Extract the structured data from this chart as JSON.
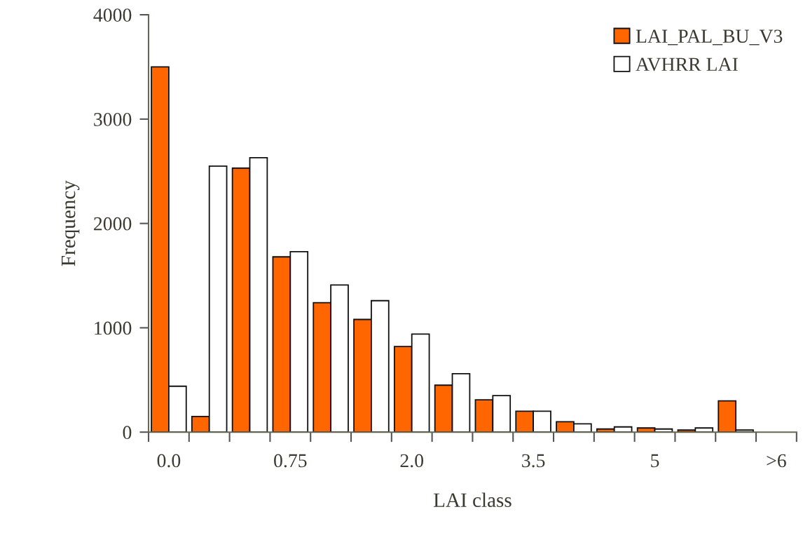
{
  "chart_data": {
    "type": "bar",
    "xlabel": "LAI class",
    "ylabel": "Frequency",
    "categories": [
      "0.0",
      null,
      null,
      "0.75",
      null,
      null,
      "2.0",
      null,
      null,
      "3.5",
      null,
      null,
      "5",
      null,
      null,
      ">6"
    ],
    "series": [
      {
        "name": "LAI_PAL_BU_V3",
        "color": "#ff6600",
        "values": [
          3500,
          150,
          2530,
          1680,
          1240,
          1080,
          820,
          450,
          310,
          200,
          100,
          30,
          40,
          20,
          300,
          null
        ]
      },
      {
        "name": "AVHRR LAI",
        "color": "#ffffff",
        "values": [
          440,
          2550,
          2630,
          1730,
          1410,
          1260,
          940,
          560,
          350,
          200,
          80,
          50,
          30,
          40,
          20,
          null
        ]
      }
    ],
    "ylim": [
      0,
      4000
    ],
    "yticks": [
      0,
      1000,
      2000,
      3000,
      4000
    ],
    "grid": false,
    "legend": "top right"
  }
}
